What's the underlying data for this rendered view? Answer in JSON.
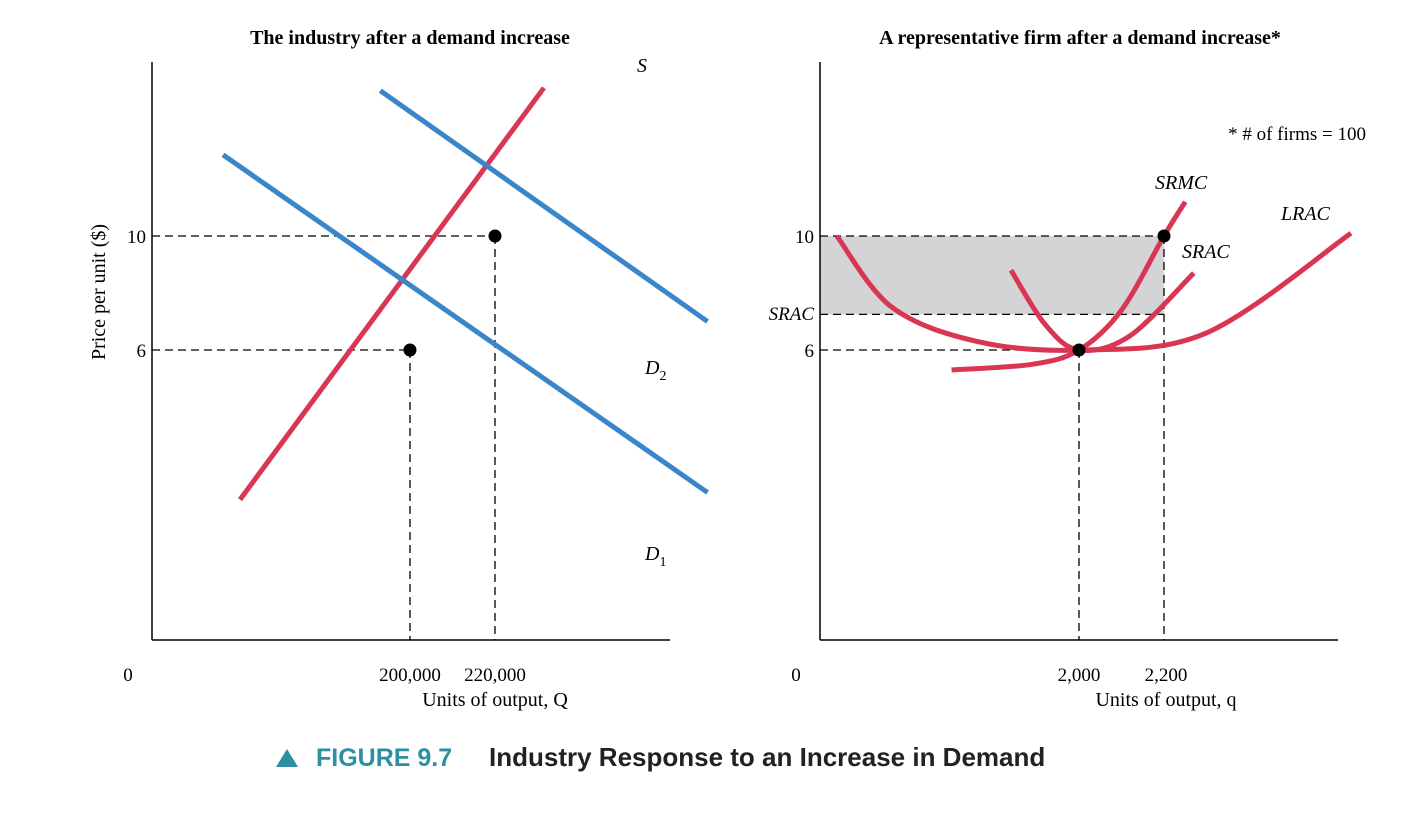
{
  "colors": {
    "demand": "#3a86c8",
    "supply": "#d93654",
    "point": "#000000",
    "shade": "#d4d4d6",
    "caption_accent": "#2d8fa0"
  },
  "caption": {
    "number": "FIGURE 9.7",
    "title": "Industry Response to an Increase in Demand"
  },
  "y_axis_label": "Price per unit ($)",
  "chart_data": [
    {
      "type": "line",
      "title": "The industry after a demand increase",
      "xlabel": "Units of output, Q",
      "ylabel": "Price per unit ($)",
      "origin_label": "0",
      "x_ticks": [
        {
          "value": 200000,
          "label": "200,000"
        },
        {
          "value": 220000,
          "label": "220,000"
        }
      ],
      "y_ticks": [
        {
          "value": 6,
          "label": "6"
        },
        {
          "value": 10,
          "label": "10"
        }
      ],
      "series": [
        {
          "name": "S",
          "points": [
            [
              160000,
              0.75
            ],
            [
              231500,
              15.2
            ]
          ]
        },
        {
          "name": "D1",
          "points": [
            [
              156000,
              12.85
            ],
            [
              270000,
              1.0
            ]
          ]
        },
        {
          "name": "D2",
          "points": [
            [
              193000,
              15.1
            ],
            [
              270000,
              7.0
            ]
          ]
        }
      ],
      "series_labels": {
        "S": {
          "main": "S",
          "sub": ""
        },
        "D1": {
          "main": "D",
          "sub": "1"
        },
        "D2": {
          "main": "D",
          "sub": "2"
        }
      },
      "equilibria": [
        {
          "x": 200000,
          "y": 6
        },
        {
          "x": 220000,
          "y": 10
        }
      ]
    },
    {
      "type": "line",
      "title": "A representative firm after a demand increase*",
      "xlabel": "Units of output, q",
      "origin_label": "0",
      "annotation": "* # of firms = 100",
      "x_ticks": [
        {
          "value": 2000,
          "label": "2,000"
        },
        {
          "value": 2200,
          "label": "2,200"
        }
      ],
      "y_ticks": [
        {
          "value": 6,
          "label": "6"
        },
        {
          "value": 10,
          "label": "10"
        }
      ],
      "srac_tick": {
        "value": 7.25,
        "label": "SRAC"
      },
      "shaded_profit": {
        "x": [
          0,
          2200
        ],
        "y": [
          7.25,
          10
        ]
      },
      "series": [
        {
          "name": "SRMC",
          "points": [
            [
              1700,
              5.3
            ],
            [
              1890,
              5.5
            ],
            [
              2000,
              6.0
            ],
            [
              2100,
              7.4
            ],
            [
              2200,
              10.0
            ],
            [
              2250,
              11.2
            ]
          ]
        },
        {
          "name": "SRAC",
          "points": [
            [
              1840,
              8.8
            ],
            [
              1920,
              6.9
            ],
            [
              2000,
              6.0
            ],
            [
              2120,
              6.5
            ],
            [
              2270,
              8.7
            ]
          ]
        },
        {
          "name": "LRAC",
          "points": [
            [
              1430,
              10.0
            ],
            [
              1560,
              7.5
            ],
            [
              1760,
              6.3
            ],
            [
              2000,
              6.0
            ],
            [
              2300,
              6.6
            ],
            [
              2640,
              10.1
            ]
          ]
        }
      ],
      "equilibria": [
        {
          "x": 2000,
          "y": 6
        },
        {
          "x": 2200,
          "y": 10
        }
      ]
    }
  ]
}
